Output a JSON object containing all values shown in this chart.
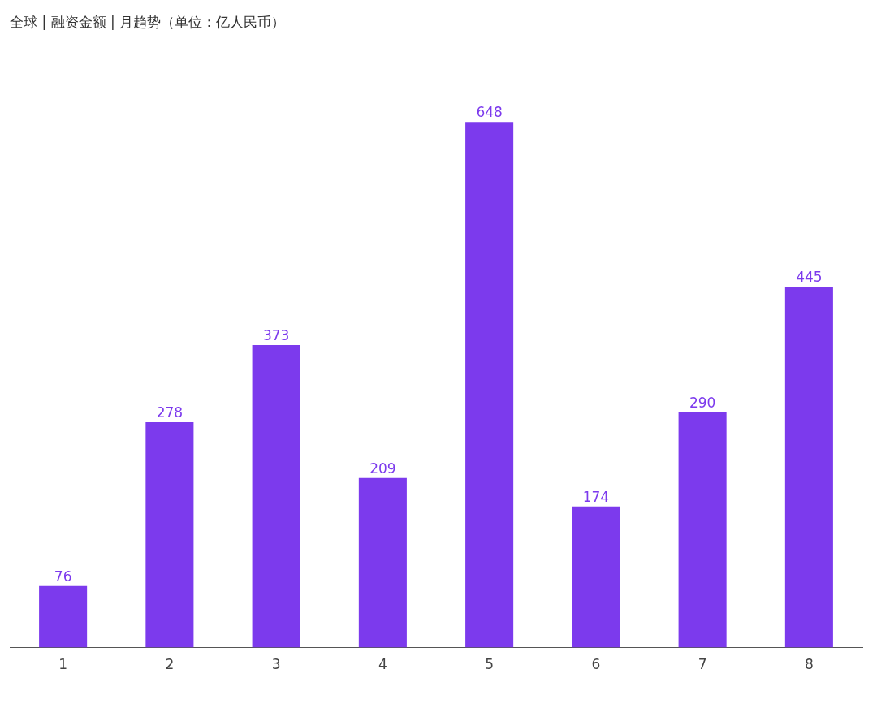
{
  "chart_data": {
    "type": "bar",
    "title": "全球 | 融资金额 | 月趋势（单位：亿人民币）",
    "categories": [
      "1",
      "2",
      "3",
      "4",
      "5",
      "6",
      "7",
      "8"
    ],
    "values": [
      76,
      278,
      373,
      209,
      648,
      174,
      290,
      445
    ],
    "color": "#7c3aed",
    "data_labels": true,
    "grid": false,
    "legend": false
  }
}
